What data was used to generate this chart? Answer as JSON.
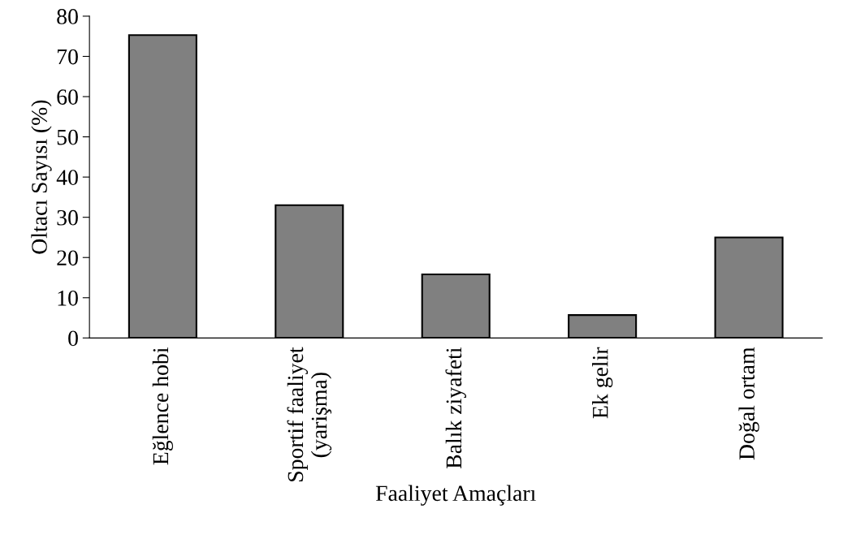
{
  "chart_data": {
    "type": "bar",
    "xlabel": "Faaliyet Amaçları",
    "ylabel": "Oltacı Sayısı (%)",
    "categories": [
      "Eğlence hobi",
      "Sportif faaliyet\n(yarişma)",
      "Balık ziyafeti",
      "Ek gelir",
      "Doğal ortam"
    ],
    "values": [
      75.3,
      33,
      15.8,
      5.7,
      25
    ],
    "color": "#808080",
    "ylim": [
      0,
      80
    ],
    "yticks": [
      0,
      10,
      20,
      30,
      40,
      50,
      60,
      70,
      80
    ],
    "grid": false,
    "legend": false
  }
}
